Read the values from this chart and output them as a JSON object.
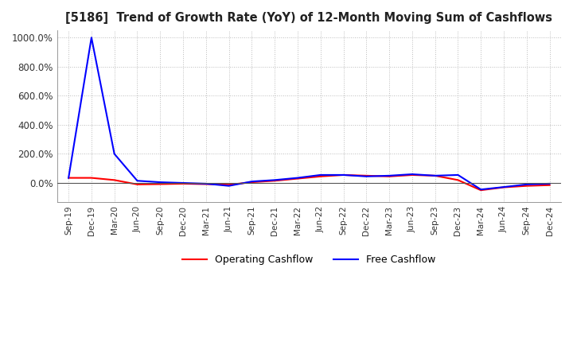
{
  "title": "[5186]  Trend of Growth Rate (YoY) of 12-Month Moving Sum of Cashflows",
  "background_color": "#ffffff",
  "grid_color": "#aaaaaa",
  "operating_color": "#ff0000",
  "free_color": "#0000ff",
  "legend_labels": [
    "Operating Cashflow",
    "Free Cashflow"
  ],
  "ylim": [
    -130,
    1050
  ],
  "yticks": [
    0,
    200,
    400,
    600,
    800,
    1000
  ],
  "ytick_labels": [
    "0.0%",
    "200.0%",
    "400.0%",
    "600.0%",
    "800.0%",
    "1000.0%"
  ],
  "dates": [
    "Sep-19",
    "Dec-19",
    "Mar-20",
    "Jun-20",
    "Sep-20",
    "Dec-20",
    "Mar-21",
    "Jun-21",
    "Sep-21",
    "Dec-21",
    "Mar-22",
    "Jun-22",
    "Sep-22",
    "Dec-22",
    "Mar-23",
    "Jun-23",
    "Sep-23",
    "Dec-23",
    "Mar-24",
    "Jun-24",
    "Sep-24",
    "Dec-24"
  ],
  "operating_cashflow": [
    35,
    35,
    20,
    -10,
    -8,
    -5,
    -8,
    -12,
    5,
    15,
    30,
    45,
    55,
    50,
    45,
    55,
    50,
    20,
    -50,
    -30,
    -20,
    -15
  ],
  "free_cashflow": [
    35,
    1000,
    200,
    15,
    5,
    0,
    -5,
    -20,
    10,
    20,
    35,
    55,
    55,
    45,
    50,
    60,
    50,
    55,
    -45,
    -28,
    -10,
    -5
  ]
}
